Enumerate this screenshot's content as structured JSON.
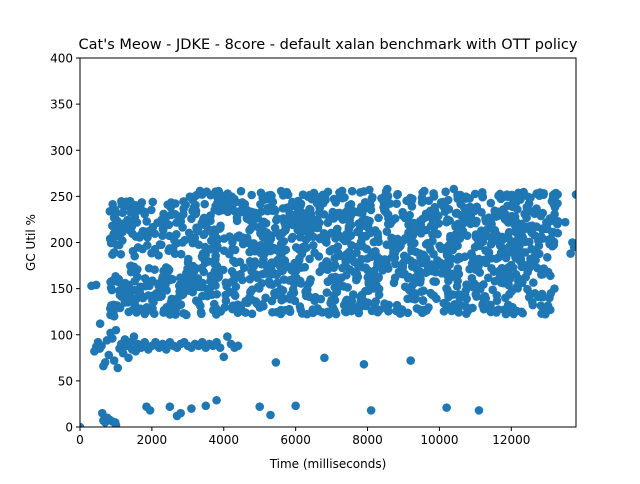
{
  "chart_data": {
    "type": "scatter",
    "title": "Cat's Meow - JDKE - 8core -  default xalan benchmark with OTT policy",
    "xlabel": "Time (milliseconds)",
    "ylabel": "GC Util %",
    "xlim": [
      0,
      13800
    ],
    "ylim": [
      0,
      400
    ],
    "xticks": [
      0,
      2000,
      4000,
      6000,
      8000,
      10000,
      12000
    ],
    "yticks": [
      0,
      50,
      100,
      150,
      200,
      250,
      300,
      350,
      400
    ],
    "xtick_labels": [
      "0",
      "2000",
      "4000",
      "6000",
      "8000",
      "10000",
      "12000"
    ],
    "ytick_labels": [
      "0",
      "50",
      "100",
      "150",
      "200",
      "250",
      "300",
      "350",
      "400"
    ],
    "grid": false,
    "legend": "none",
    "marker_color": "#1f77b4",
    "series": [
      {
        "points": [
          [
            0,
            0
          ],
          [
            320,
            153
          ],
          [
            450,
            154
          ],
          [
            560,
            112
          ],
          [
            620,
            15
          ],
          [
            650,
            7
          ],
          [
            700,
            5
          ],
          [
            760,
            10
          ],
          [
            820,
            8
          ],
          [
            900,
            6
          ],
          [
            980,
            5
          ],
          [
            1000,
            2
          ],
          [
            1850,
            22
          ],
          [
            1950,
            18
          ],
          [
            2500,
            22
          ],
          [
            2700,
            12
          ],
          [
            2800,
            15
          ],
          [
            3100,
            20
          ],
          [
            3500,
            23
          ],
          [
            3800,
            29
          ],
          [
            5000,
            22
          ],
          [
            5300,
            13
          ],
          [
            6000,
            23
          ],
          [
            8100,
            18
          ],
          [
            10200,
            21
          ],
          [
            11100,
            18
          ],
          [
            5450,
            70
          ],
          [
            6800,
            75
          ],
          [
            7900,
            68
          ],
          [
            9200,
            72
          ],
          [
            400,
            82
          ],
          [
            450,
            87
          ],
          [
            500,
            92
          ],
          [
            550,
            85
          ],
          [
            600,
            88
          ],
          [
            650,
            66
          ],
          [
            700,
            70
          ],
          [
            750,
            94
          ],
          [
            800,
            78
          ],
          [
            850,
            102
          ],
          [
            900,
            96
          ],
          [
            950,
            72
          ],
          [
            1000,
            105
          ],
          [
            1050,
            64
          ],
          [
            1100,
            85
          ],
          [
            1150,
            90
          ],
          [
            1200,
            80
          ],
          [
            1250,
            95
          ],
          [
            1300,
            88
          ],
          [
            1350,
            75
          ],
          [
            1400,
            92
          ],
          [
            1450,
            84
          ],
          [
            1500,
            98
          ],
          [
            1550,
            82
          ],
          [
            1600,
            90
          ],
          [
            1700,
            86
          ],
          [
            1800,
            92
          ],
          [
            1900,
            84
          ],
          [
            2000,
            88
          ],
          [
            2100,
            92
          ],
          [
            2200,
            86
          ],
          [
            2300,
            90
          ],
          [
            2400,
            84
          ],
          [
            2500,
            92
          ],
          [
            2600,
            88
          ],
          [
            2700,
            86
          ],
          [
            2800,
            90
          ],
          [
            2900,
            92
          ],
          [
            3000,
            88
          ],
          [
            3100,
            86
          ],
          [
            3200,
            90
          ],
          [
            3300,
            88
          ],
          [
            3400,
            92
          ],
          [
            3500,
            86
          ],
          [
            3600,
            90
          ],
          [
            3700,
            88
          ],
          [
            3800,
            92
          ],
          [
            3900,
            86
          ],
          [
            4000,
            76
          ],
          [
            4100,
            98
          ],
          [
            4200,
            90
          ],
          [
            4300,
            86
          ],
          [
            4400,
            88
          ],
          [
            3400,
            252
          ],
          [
            6900,
            255
          ],
          [
            8050,
            257
          ],
          [
            8550,
            258
          ],
          [
            10400,
            258
          ],
          [
            13800,
            252
          ],
          [
            13750,
            195
          ],
          [
            13700,
            200
          ],
          [
            13650,
            188
          ],
          [
            13500,
            222
          ],
          [
            13300,
            223
          ],
          [
            13200,
            150
          ],
          [
            13100,
            145
          ]
        ],
        "bands": [
          {
            "x_range": [
              800,
              3000
            ],
            "y_range": [
              120,
              175
            ],
            "count": 130,
            "seed": 11
          },
          {
            "x_range": [
              3000,
              13100
            ],
            "y_range": [
              122,
              188
            ],
            "count": 620,
            "seed": 23
          },
          {
            "x_range": [
              800,
              3000
            ],
            "y_range": [
              185,
              245
            ],
            "count": 120,
            "seed": 37
          },
          {
            "x_range": [
              3000,
              13300
            ],
            "y_range": [
              188,
              256
            ],
            "count": 680,
            "seed": 41
          }
        ]
      }
    ]
  }
}
